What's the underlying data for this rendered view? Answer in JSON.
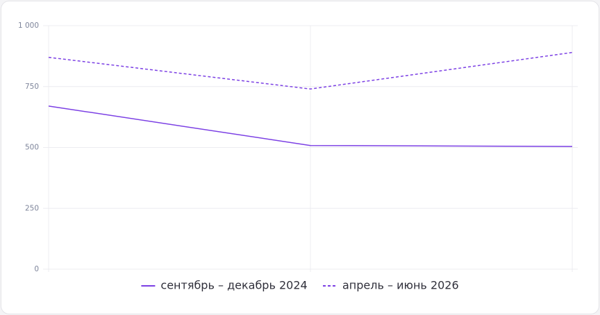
{
  "chart_data": {
    "type": "line",
    "categories": [
      null,
      null,
      null
    ],
    "series": [
      {
        "name": "сентябрь – декабрь 2024",
        "color": "#7b3fe4",
        "line_style": "solid",
        "values": [
          670,
          508,
          504
        ]
      },
      {
        "name": "апрель – июнь 2026",
        "color": "#7b3fe4",
        "line_style": "dashed",
        "values": [
          870,
          740,
          890
        ]
      }
    ],
    "ylim": [
      0,
      1000
    ],
    "yticks": [
      0,
      250,
      500,
      750,
      {
        "value": 1000,
        "label": "1 000"
      }
    ],
    "grid": true,
    "legend": "bottom"
  }
}
